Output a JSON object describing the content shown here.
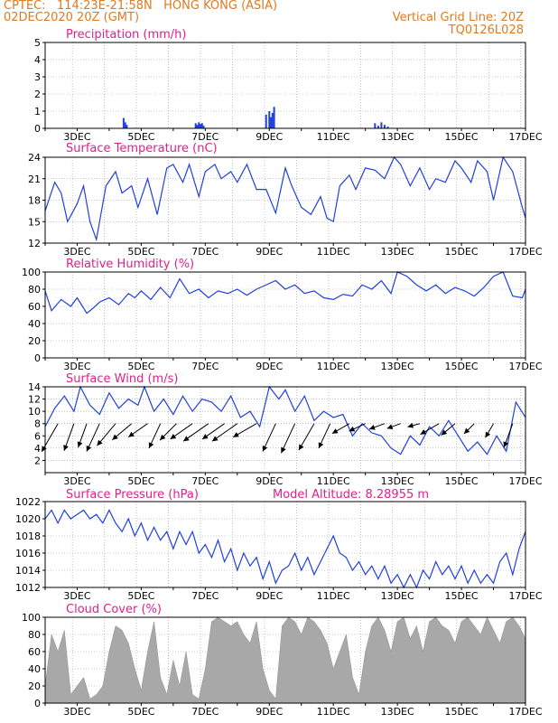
{
  "header": {
    "line1": "CPTEC:   114:23E-21:58N   HONG KONG (ASIA)",
    "line2": "02DEC2020 20Z (GMT)",
    "grid_note": "Vertical Grid Line: 20Z",
    "code": "TQ0126L028"
  },
  "colors": {
    "header": "#e07a1f",
    "title": "#e0208a",
    "line": "#2040e0",
    "cloud": "#a8a8a8",
    "wind": "#000000"
  },
  "x_axis": {
    "start_day": 2,
    "end_day": 17,
    "labels": [
      "3DEC",
      "5DEC",
      "7DEC",
      "9DEC",
      "11DEC",
      "13DEC",
      "15DEC",
      "17DEC"
    ]
  },
  "chart_data": [
    {
      "id": "precip",
      "type": "bar",
      "title": "Precipitation (mm/h)",
      "ylim": [
        0,
        5
      ],
      "yticks": [
        "0",
        "1",
        "2",
        "3",
        "4",
        "5"
      ],
      "x": [
        4.45,
        4.5,
        4.55,
        6.7,
        6.75,
        6.8,
        6.85,
        6.9,
        6.95,
        8.9,
        9.0,
        9.05,
        9.1,
        9.15,
        12.3,
        12.4,
        12.5,
        12.6,
        12.7
      ],
      "values": [
        0.6,
        0.35,
        0.2,
        0.3,
        0.2,
        0.35,
        0.25,
        0.3,
        0.15,
        0.8,
        1.0,
        0.65,
        0.9,
        1.25,
        0.3,
        0.15,
        0.35,
        0.2,
        0.1
      ]
    },
    {
      "id": "temp",
      "type": "line",
      "title": "Surface Temperature (nC)",
      "ylim": [
        12,
        24
      ],
      "yticks": [
        "12",
        "15",
        "18",
        "21",
        "24"
      ],
      "x": [
        2.0,
        2.3,
        2.5,
        2.7,
        3.0,
        3.2,
        3.4,
        3.6,
        3.9,
        4.2,
        4.4,
        4.7,
        4.9,
        5.2,
        5.5,
        5.8,
        6.0,
        6.3,
        6.5,
        6.8,
        7.0,
        7.3,
        7.5,
        7.8,
        8.0,
        8.3,
        8.6,
        8.9,
        9.2,
        9.5,
        9.7,
        10.0,
        10.3,
        10.6,
        10.8,
        11.0,
        11.2,
        11.5,
        11.7,
        12.0,
        12.3,
        12.6,
        12.9,
        13.1,
        13.4,
        13.7,
        14.0,
        14.2,
        14.5,
        14.8,
        15.0,
        15.3,
        15.5,
        15.8,
        16.0,
        16.3,
        16.6,
        16.9,
        17.0
      ],
      "values": [
        16.5,
        20.5,
        19,
        15,
        17.5,
        20,
        15,
        12.5,
        20,
        22,
        19,
        20,
        17,
        21,
        16,
        22.5,
        23,
        20.5,
        23,
        18.5,
        22,
        23,
        21,
        22,
        20.5,
        23,
        19.5,
        19.5,
        16.2,
        22.5,
        20,
        17,
        16,
        18.5,
        15.5,
        15,
        20,
        21.5,
        19.5,
        22.5,
        22.2,
        21,
        24,
        23,
        20,
        22.5,
        19.5,
        21,
        20.5,
        23.5,
        22.5,
        20.5,
        23.5,
        22,
        18,
        24,
        22,
        17,
        15.5
      ]
    },
    {
      "id": "rh",
      "type": "line",
      "title": "Relative Humidity (%)",
      "ylim": [
        0,
        100
      ],
      "yticks": [
        "0",
        "20",
        "40",
        "60",
        "80",
        "100"
      ],
      "x": [
        2.0,
        2.2,
        2.5,
        2.8,
        3.0,
        3.3,
        3.5,
        3.7,
        4.0,
        4.3,
        4.6,
        4.8,
        5.0,
        5.3,
        5.6,
        5.9,
        6.2,
        6.5,
        6.8,
        7.1,
        7.4,
        7.7,
        8.0,
        8.3,
        8.6,
        8.9,
        9.2,
        9.5,
        9.8,
        10.1,
        10.4,
        10.7,
        11.0,
        11.3,
        11.6,
        11.9,
        12.2,
        12.5,
        12.8,
        13.0,
        13.3,
        13.6,
        13.9,
        14.2,
        14.5,
        14.8,
        15.1,
        15.4,
        15.7,
        16.0,
        16.3,
        16.6,
        16.9,
        17.0
      ],
      "values": [
        78,
        55,
        68,
        60,
        70,
        52,
        58,
        65,
        70,
        62,
        75,
        70,
        78,
        68,
        82,
        70,
        92,
        75,
        80,
        70,
        78,
        75,
        80,
        73,
        80,
        85,
        90,
        80,
        85,
        75,
        78,
        70,
        68,
        74,
        72,
        85,
        80,
        90,
        75,
        100,
        95,
        85,
        78,
        85,
        75,
        82,
        78,
        72,
        82,
        95,
        100,
        72,
        70,
        80
      ]
    },
    {
      "id": "wind",
      "type": "line",
      "title": "Surface Wind (m/s)",
      "ylim": [
        0,
        14
      ],
      "yticks": [
        "2",
        "4",
        "6",
        "8",
        "10",
        "12",
        "14"
      ],
      "x": [
        2.0,
        2.3,
        2.6,
        2.9,
        3.1,
        3.4,
        3.7,
        4.0,
        4.3,
        4.6,
        4.9,
        5.1,
        5.4,
        5.7,
        6.0,
        6.3,
        6.6,
        6.9,
        7.2,
        7.5,
        7.8,
        8.1,
        8.4,
        8.7,
        9.0,
        9.3,
        9.5,
        9.8,
        10.1,
        10.4,
        10.7,
        11.0,
        11.3,
        11.6,
        11.9,
        12.2,
        12.5,
        12.8,
        13.1,
        13.4,
        13.7,
        14.0,
        14.3,
        14.6,
        14.9,
        15.2,
        15.5,
        15.8,
        16.1,
        16.4,
        16.7,
        17.0
      ],
      "values": [
        7.5,
        10.5,
        12.5,
        10,
        14,
        11,
        9.5,
        13,
        10.5,
        12,
        11,
        14,
        10,
        12,
        9.5,
        12.5,
        10,
        12,
        11.5,
        10,
        12.5,
        9,
        10,
        7.5,
        14,
        12,
        13.5,
        10,
        12.5,
        8.5,
        10,
        9,
        9.5,
        6,
        8,
        6.5,
        6,
        4,
        3,
        6,
        4.5,
        7.5,
        6,
        8.5,
        6,
        3.5,
        5,
        3,
        6,
        3.5,
        11.5,
        9
      ],
      "barbs_x": [
        2.4,
        2.9,
        3.3,
        3.7,
        4.2,
        4.7,
        5.2,
        5.6,
        6.1,
        6.6,
        7.1,
        7.6,
        8.0,
        8.6,
        9.2,
        9.8,
        10.4,
        10.9,
        11.5,
        12.0,
        12.6,
        13.1,
        13.7,
        14.3,
        14.8,
        15.4,
        16.0,
        16.6
      ],
      "barbs_dir": [
        30,
        20,
        20,
        25,
        40,
        50,
        55,
        25,
        45,
        55,
        55,
        55,
        55,
        60,
        25,
        25,
        30,
        25,
        60,
        65,
        70,
        70,
        75,
        60,
        50,
        45,
        30,
        20
      ],
      "barbs_len": [
        36,
        32,
        28,
        34,
        32,
        28,
        26,
        30,
        26,
        30,
        34,
        30,
        34,
        30,
        34,
        36,
        34,
        30,
        22,
        20,
        18,
        16,
        14,
        24,
        20,
        16,
        18,
        28
      ]
    },
    {
      "id": "pres",
      "type": "line",
      "title": "Surface Pressure (hPa)",
      "altitude_label": "Model Altitude: 8.28955 m",
      "ylim": [
        1012,
        1022
      ],
      "yticks": [
        "1012",
        "1014",
        "1016",
        "1018",
        "1020",
        "1022"
      ],
      "x": [
        2.0,
        2.2,
        2.4,
        2.6,
        2.8,
        3.0,
        3.2,
        3.4,
        3.6,
        3.8,
        4.0,
        4.2,
        4.4,
        4.6,
        4.8,
        5.0,
        5.2,
        5.4,
        5.6,
        5.8,
        6.0,
        6.2,
        6.4,
        6.6,
        6.8,
        7.0,
        7.2,
        7.4,
        7.6,
        7.8,
        8.0,
        8.2,
        8.4,
        8.6,
        8.8,
        9.0,
        9.2,
        9.4,
        9.6,
        9.8,
        10.0,
        10.2,
        10.4,
        10.6,
        10.8,
        11.0,
        11.2,
        11.4,
        11.6,
        11.8,
        12.0,
        12.2,
        12.4,
        12.6,
        12.8,
        13.0,
        13.2,
        13.4,
        13.6,
        13.8,
        14.0,
        14.2,
        14.4,
        14.6,
        14.8,
        15.0,
        15.2,
        15.4,
        15.6,
        15.8,
        16.0,
        16.2,
        16.4,
        16.6,
        16.8,
        17.0
      ],
      "values": [
        1020,
        1021,
        1019.5,
        1021,
        1020,
        1020.5,
        1021,
        1020,
        1020.5,
        1019.5,
        1021,
        1019.5,
        1018.5,
        1020,
        1018,
        1019.5,
        1017.5,
        1019,
        1017.5,
        1018.5,
        1016.5,
        1018.5,
        1017,
        1018.5,
        1016,
        1017,
        1015.5,
        1017.5,
        1015,
        1016.5,
        1014,
        1016,
        1014.5,
        1015.5,
        1013,
        1015,
        1012.5,
        1014,
        1014.5,
        1016,
        1014,
        1015.5,
        1013.5,
        1015,
        1016.5,
        1018,
        1016,
        1015.5,
        1014,
        1015,
        1013.5,
        1014.5,
        1013,
        1014.5,
        1012.5,
        1013.5,
        1012,
        1013.5,
        1012,
        1014,
        1013,
        1015,
        1013.5,
        1014.5,
        1013,
        1014.5,
        1012.5,
        1014,
        1012.5,
        1013.5,
        1012.5,
        1015,
        1016,
        1013.5,
        1016.5,
        1018.5
      ]
    },
    {
      "id": "cloud",
      "type": "area",
      "title": "Cloud Cover (%)",
      "ylim": [
        0,
        100
      ],
      "yticks": [
        "0",
        "20",
        "40",
        "60",
        "80",
        "100"
      ],
      "x": [
        2.0,
        2.2,
        2.4,
        2.6,
        2.8,
        3.0,
        3.2,
        3.4,
        3.6,
        3.8,
        4.0,
        4.2,
        4.4,
        4.6,
        4.8,
        5.0,
        5.2,
        5.4,
        5.6,
        5.8,
        6.0,
        6.2,
        6.4,
        6.6,
        6.8,
        7.0,
        7.2,
        7.4,
        7.6,
        7.8,
        8.0,
        8.2,
        8.4,
        8.6,
        8.8,
        9.0,
        9.2,
        9.4,
        9.6,
        9.8,
        10.0,
        10.2,
        10.4,
        10.6,
        10.8,
        11.0,
        11.2,
        11.4,
        11.6,
        11.8,
        12.0,
        12.2,
        12.4,
        12.6,
        12.8,
        13.0,
        13.2,
        13.4,
        13.6,
        13.8,
        14.0,
        14.2,
        14.4,
        14.6,
        14.8,
        15.0,
        15.2,
        15.4,
        15.6,
        15.8,
        16.0,
        16.2,
        16.4,
        16.6,
        16.8,
        17.0
      ],
      "values": [
        20,
        80,
        60,
        85,
        10,
        20,
        30,
        5,
        10,
        20,
        60,
        90,
        85,
        70,
        40,
        15,
        60,
        95,
        30,
        10,
        50,
        20,
        60,
        10,
        5,
        40,
        95,
        100,
        95,
        90,
        95,
        80,
        70,
        95,
        40,
        15,
        5,
        90,
        100,
        95,
        80,
        100,
        95,
        85,
        70,
        40,
        60,
        80,
        30,
        10,
        60,
        90,
        100,
        85,
        60,
        95,
        100,
        75,
        90,
        60,
        95,
        100,
        90,
        85,
        70,
        95,
        100,
        90,
        80,
        100,
        85,
        70,
        95,
        100,
        90,
        75
      ]
    }
  ]
}
